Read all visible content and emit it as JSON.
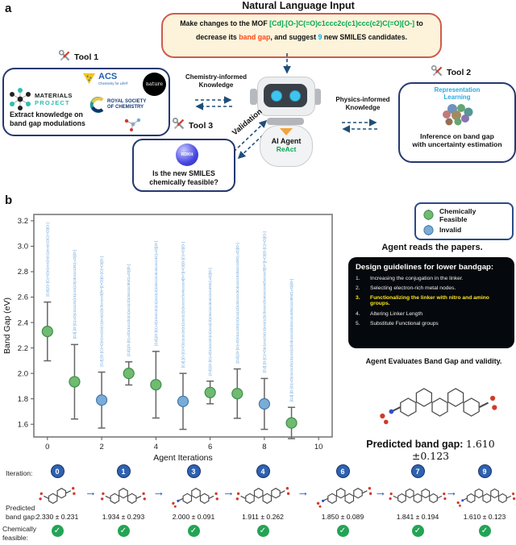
{
  "icons": {
    "arrow_right": "→",
    "check": "✓"
  },
  "panel_a": {
    "label": "a",
    "title": "Natural Language Input",
    "input_box": {
      "prefix": "Make changes to the MOF ",
      "smiles": "[Cd].[O-]C(=O)c1ccc2c(c1)ccc(c2)C(=O)[O-]",
      "mid": " to decrease its ",
      "highlight": "band gap",
      "mid2": ", and suggest ",
      "count": "9",
      "suffix": " new SMILES candidates."
    },
    "tool1": {
      "label": "Tool 1",
      "caption1": "Extract knowledge on",
      "caption2": "band gap modulations",
      "logos": {
        "mp": {
          "line1": "MATERIALS",
          "line2": "PROJECT"
        },
        "acs": {
          "name": "ACS",
          "tagline": "Chemistry for Life®"
        },
        "nature": "nature",
        "rsc": {
          "line1": "ROYAL SOCIETY",
          "line2": "OF CHEMISTRY"
        }
      }
    },
    "knowledge_left": {
      "line1": "Chemistry-informed",
      "line2": "Knowledge"
    },
    "knowledge_right": {
      "line1": "Physics-informed",
      "line2": "Knowledge"
    },
    "validation": "Validation",
    "robot": {
      "name": "AI Agent",
      "framework": "ReAct"
    },
    "tool2": {
      "label": "Tool 2",
      "top1": "Representation",
      "top2": "Learning",
      "caption1": "Inference on band gap",
      "caption2": "with uncertainty estimation"
    },
    "tool3": {
      "label": "Tool 3",
      "logo": "RDKit",
      "caption1": "Is the new SMILES",
      "caption2": "chemically feasible?"
    }
  },
  "panel_b": {
    "label": "b",
    "chart_data": {
      "type": "scatter",
      "xlabel": "Agent Iterations",
      "ylabel": "Band Gap (eV)",
      "xlim": [
        -0.5,
        10.5
      ],
      "ylim": [
        1.5,
        3.25
      ],
      "xticks": [
        0,
        2,
        4,
        6,
        8,
        10
      ],
      "yticks": [
        3.2,
        3.0,
        2.8,
        2.6,
        2.4,
        2.2,
        2.0,
        1.8,
        1.6
      ],
      "grid": false,
      "colors": {
        "feasible": "#6fbb6f",
        "feasible_edge": "#3f8c4f",
        "invalid": "#79add8",
        "invalid_edge": "#4678a8"
      },
      "legend": [
        {
          "label": "Chemically Feasible",
          "key": "feasible"
        },
        {
          "label": "Invalid",
          "key": "invalid"
        }
      ],
      "points": [
        {
          "x": 0,
          "y": 2.33,
          "err": 0.231,
          "feasible": true,
          "smiles": "[Cd].[O-]C(=O)c1ccc2c(c1)ccc(c2)C(=O)[O-]"
        },
        {
          "x": 1,
          "y": 1.934,
          "err": 0.293,
          "feasible": true,
          "smiles": "[Cd].[O-]C(=O)c1ccc2c(c1)ccc(c2)c3ccccc3C(=O)[O-]"
        },
        {
          "x": 2,
          "y": 1.79,
          "err": 0.22,
          "feasible": false,
          "smiles": "[Cd].[O-]C(=O)c1ccc2c(c1)ccc(c2)c3ccccc3[N+](=O)[O-]C(=O)[O-]"
        },
        {
          "x": 3,
          "y": 2.0,
          "err": 0.091,
          "feasible": true,
          "smiles": "[Cd].[O-]C(=O)c1ccc2c(c1)ccc(c2)c3ccccc3NC(=O)[O-]"
        },
        {
          "x": 4,
          "y": 1.911,
          "err": 0.262,
          "feasible": true,
          "smiles": "[Cd].[O-]C(=O)c1ccc2c(c1)ccc(c2)c3ccccc3c4ccccc4C(=O)[O-]"
        },
        {
          "x": 5,
          "y": 1.78,
          "err": 0.22,
          "feasible": false,
          "smiles": "[Cd].[O-]C(=O)c1ccc2c(c1)ccc(c2)c3ccccc3c4ccccc4[N+](=O)[O-]C(=O)[O-]"
        },
        {
          "x": 6,
          "y": 1.85,
          "err": 0.089,
          "feasible": true,
          "smiles": "[Cd].[O-]C(=O)c1ccc2c(c1)ccc(c2)c3ccccc3c4ccccc4NC(=O)[O-]"
        },
        {
          "x": 7,
          "y": 1.841,
          "err": 0.194,
          "feasible": true,
          "smiles": "[Cd].[O-]C(=O)c1ccc2c(c1)ccc(c2)c3ccccc3c4ccccc4c5ccccc5C(=O)[O-]"
        },
        {
          "x": 8,
          "y": 1.76,
          "err": 0.2,
          "feasible": false,
          "smiles": "[Cd].[O-]C(=O)c1ccc2c(c1)ccc(c2)c3ccccc3c4ccccc4c5ccccc5[N+](=O)[O-]C(=O)[O-]"
        },
        {
          "x": 9,
          "y": 1.61,
          "err": 0.123,
          "feasible": true,
          "smiles": "[Cd].[O-]C(=O)c1ccc2c(c1)ccc(c2)c3ccccc3c4ccccc4c5ccccc5NC(=O)[O-]"
        }
      ]
    },
    "right": {
      "reads": "Agent reads the papers.",
      "guidelines_title": "Design guidelines for lower bandgap:",
      "guidelines": [
        {
          "num": "1.",
          "text": "Increasing the conjugation in the linker.",
          "highlight": false
        },
        {
          "num": "2.",
          "text": "Selecting electron-rich metal nodes.",
          "highlight": false
        },
        {
          "num": "3.",
          "text": "Functionalizing the linker with nitro and amino groups.",
          "highlight": true
        },
        {
          "num": "4.",
          "text": "Altering Linker Length",
          "highlight": false
        },
        {
          "num": "5.",
          "text": "Substitute Functional groups",
          "highlight": false
        }
      ],
      "evaluates": "Agent Evaluates Band Gap and validity.",
      "predicted_label": "Predicted band gap:",
      "predicted_value": "1.610 ±0.123",
      "big_molecule": {
        "rings": 5,
        "has_nh": true,
        "ring_r": 11
      }
    }
  },
  "bottom": {
    "iteration_label": "Iteration:",
    "predicted_label_1": "Predicted",
    "predicted_label_2": "band gap:",
    "feasible_label_1": "Chemically",
    "feasible_label_2": "feasible:",
    "steps": [
      {
        "iter": "0",
        "value": "2.330 ± 0.231",
        "feasible": true,
        "molecule": {
          "rings": 2,
          "has_nh": false,
          "ring_r": 6
        }
      },
      {
        "iter": "1",
        "value": "1.934 ± 0.293",
        "feasible": true,
        "molecule": {
          "rings": 3,
          "has_nh": false,
          "ring_r": 6
        }
      },
      {
        "iter": "3",
        "value": "2.000 ± 0.091",
        "feasible": true,
        "molecule": {
          "rings": 3,
          "has_nh": true,
          "ring_r": 6
        }
      },
      {
        "iter": "4",
        "value": "1.911 ± 0.262",
        "feasible": true,
        "molecule": {
          "rings": 4,
          "has_nh": false,
          "ring_r": 6
        }
      },
      {
        "iter": "6",
        "value": "1.850 ± 0.089",
        "feasible": true,
        "molecule": {
          "rings": 4,
          "has_nh": true,
          "ring_r": 6
        }
      },
      {
        "iter": "7",
        "value": "1.841 ± 0.194",
        "feasible": true,
        "molecule": {
          "rings": 5,
          "has_nh": false,
          "ring_r": 5.5
        }
      },
      {
        "iter": "9",
        "value": "1.610 ± 0.123",
        "feasible": true,
        "molecule": {
          "rings": 5,
          "has_nh": true,
          "ring_r": 5.5
        }
      }
    ]
  }
}
